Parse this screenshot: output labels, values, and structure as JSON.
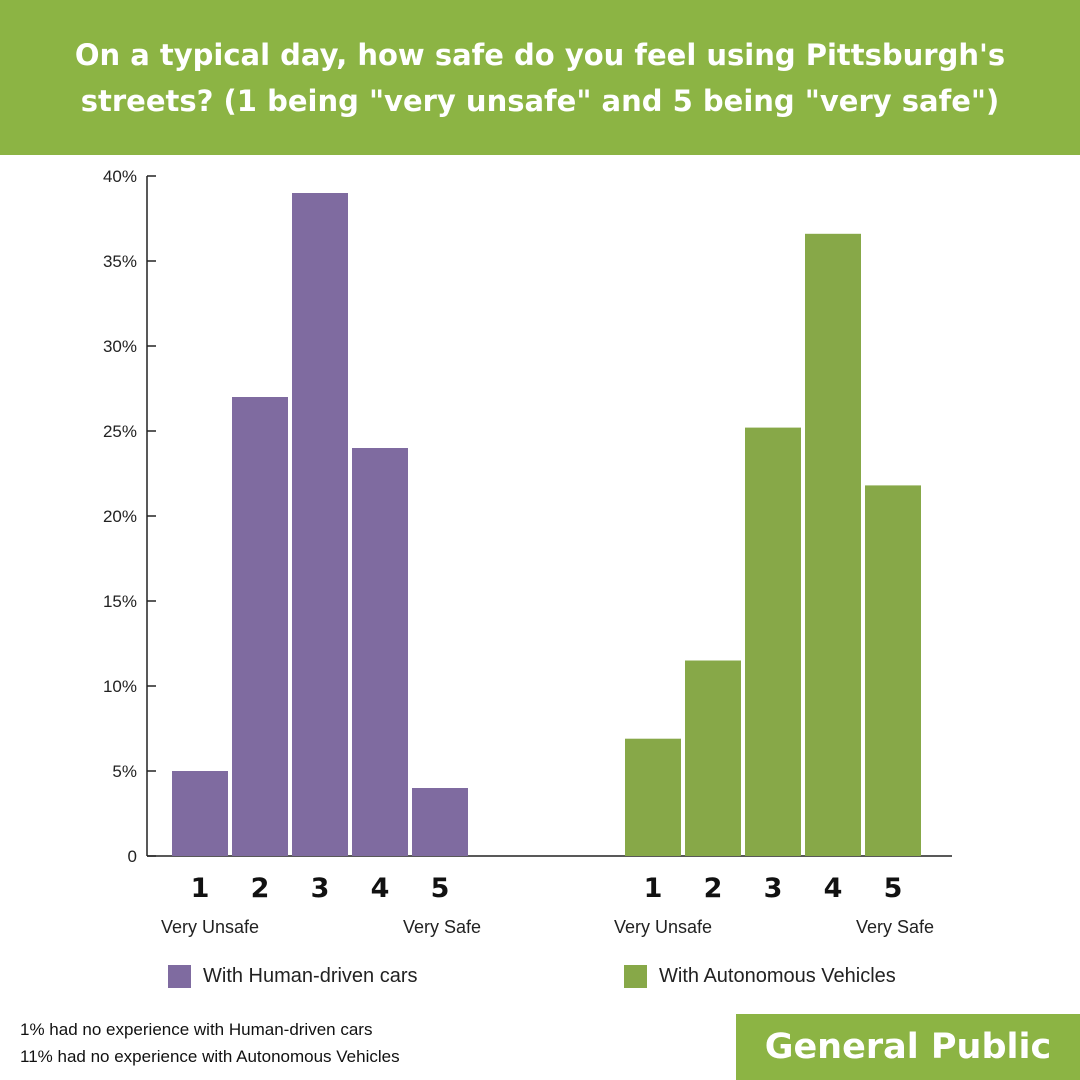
{
  "header": {
    "title": "On a typical day, how safe do you feel using Pittsburgh's streets? (1 being \"very unsafe\" and 5 being \"very safe\")"
  },
  "colors": {
    "header_bg": "#8cb444",
    "human": "#7f6ba0",
    "autonomous": "#87a848"
  },
  "chart_data": {
    "type": "bar",
    "categories": [
      "1",
      "2",
      "3",
      "4",
      "5"
    ],
    "category_end_labels": [
      "Very Unsafe",
      "Very Safe"
    ],
    "yticks": [
      "0",
      "5%",
      "10%",
      "15%",
      "20%",
      "25%",
      "30%",
      "35%",
      "40%"
    ],
    "ylim": [
      0,
      40
    ],
    "grid": false,
    "series": [
      {
        "name": "With Human-driven cars",
        "values": [
          5,
          27,
          39,
          24,
          4
        ]
      },
      {
        "name": "With Autonomous Vehicles",
        "values": [
          6.9,
          11.5,
          25.2,
          36.6,
          21.8
        ]
      }
    ]
  },
  "legend": {
    "human": "With Human-driven cars",
    "autonomous": "With Autonomous Vehicles"
  },
  "notes": [
    "1% had no experience with Human-driven cars",
    "11% had no experience with Autonomous Vehicles"
  ],
  "badge": "General Public"
}
